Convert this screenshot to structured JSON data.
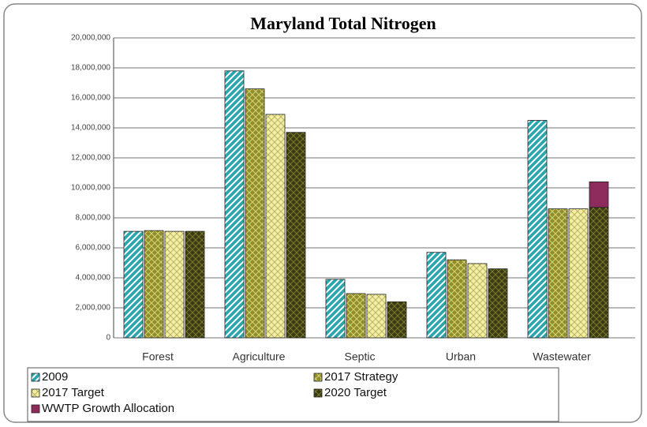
{
  "chart_data": {
    "type": "bar",
    "title": "Maryland Total Nitrogen",
    "categories": [
      "Forest",
      "Agriculture",
      "Septic",
      "Urban",
      "Wastewater"
    ],
    "series": [
      {
        "name": "2009",
        "color": "#2aa5ad",
        "values": [
          7100000,
          17800000,
          3900000,
          5700000,
          14500000
        ]
      },
      {
        "name": "2017 Strategy",
        "color": "#8e8e2c",
        "values": [
          7150000,
          16600000,
          2950000,
          5200000,
          8600000
        ]
      },
      {
        "name": "2017 Target",
        "color": "#f3eea0",
        "values": [
          7100000,
          14900000,
          2900000,
          4950000,
          8600000
        ]
      },
      {
        "name": "2020 Target",
        "color": "#3b3b12",
        "values": [
          7100000,
          13700000,
          2400000,
          4600000,
          8700000
        ]
      },
      {
        "name": "WWTP Growth Allocation",
        "color": "#8c2b5c",
        "values": [
          null,
          null,
          null,
          null,
          1700000
        ]
      }
    ],
    "ylim": [
      0,
      20000000
    ],
    "yticks": [
      0,
      {
        "value": 2000000,
        "label": "2,000,000"
      },
      {
        "value": 4000000,
        "label": "4,000,000"
      },
      {
        "value": 6000000,
        "label": "6,000,000"
      },
      {
        "value": 8000000,
        "label": "8,000,000"
      },
      {
        "value": 10000000,
        "label": "10,000,000"
      },
      {
        "value": 12000000,
        "label": "12,000,000"
      },
      {
        "value": 14000000,
        "label": "14,000,000"
      },
      {
        "value": 16000000,
        "label": "16,000,000"
      },
      {
        "value": 18000000,
        "label": "18,000,000"
      },
      {
        "value": 20000000,
        "label": "20,000,000"
      }
    ],
    "grid": true
  }
}
